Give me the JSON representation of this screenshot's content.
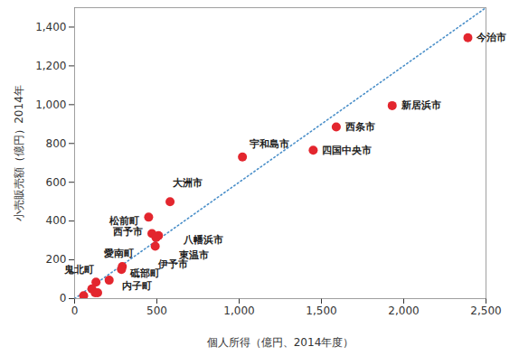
{
  "chart_data": {
    "type": "scatter",
    "x_label": "個人所得（億円、2014年度）",
    "y_label": "小売販売額（億円）2014年",
    "labels": [
      "今治市",
      "新居浜市",
      "西条市",
      "四国中央市",
      "宇和島市",
      "大洲市",
      "松前町",
      "西予市",
      "八幡浜市",
      "東温市",
      "伊予市",
      "愛南町",
      "砥部町",
      "鬼北町",
      "内子町",
      null,
      null,
      null,
      null
    ],
    "x": [
      2390,
      1930,
      1590,
      1450,
      1020,
      580,
      450,
      470,
      510,
      495,
      490,
      290,
      285,
      130,
      210,
      55,
      105,
      125,
      140
    ],
    "y": [
      1345,
      995,
      885,
      765,
      730,
      500,
      420,
      335,
      325,
      315,
      270,
      165,
      150,
      85,
      95,
      15,
      50,
      30,
      30
    ],
    "color": "#e3262e",
    "marker": "circle",
    "trend_line": {
      "x": [
        0,
        2500
      ],
      "y": [
        0,
        1500
      ],
      "color": "#4a8fc9",
      "line_style": "dotted"
    },
    "xlim": [
      0,
      2500
    ],
    "xticks": [
      0,
      500,
      {
        "value": 1000,
        "label": "1,000"
      },
      {
        "value": 1500,
        "label": "1,500"
      },
      {
        "value": 2000,
        "label": "2,000"
      },
      {
        "value": 2500,
        "label": "2,500"
      }
    ],
    "ylim": [
      0,
      1500
    ],
    "yticks": [
      0,
      200,
      400,
      600,
      800,
      {
        "value": 1000,
        "label": "1,000"
      },
      {
        "value": 1200,
        "label": "1,200"
      },
      {
        "value": 1400,
        "label": "1,400"
      }
    ],
    "grid": false
  }
}
